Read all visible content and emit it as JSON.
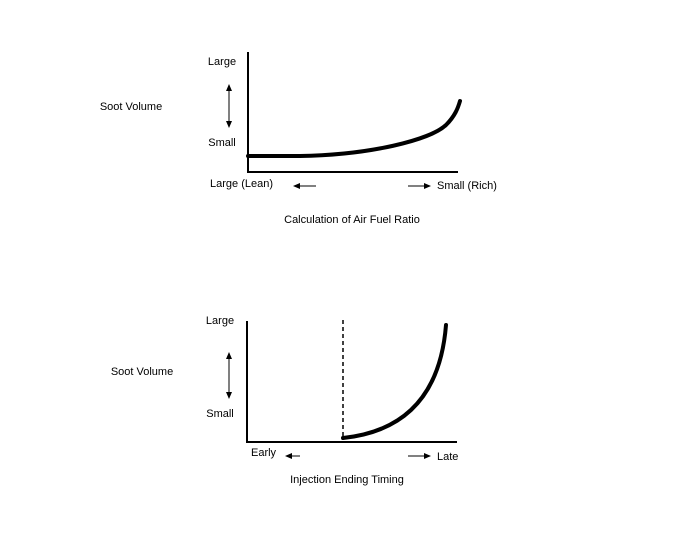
{
  "diagrams": [
    {
      "y_label": "Soot Volume",
      "y_high": "Large",
      "y_low": "Small",
      "x_low": "Large (Lean)",
      "x_high": "Small (Rich)",
      "caption": "Calculation of Air Fuel Ratio"
    },
    {
      "y_label": "Soot Volume",
      "y_high": "Large",
      "y_low": "Small",
      "x_low": "Early",
      "x_high": "Late",
      "caption": "Injection Ending Timing"
    }
  ]
}
